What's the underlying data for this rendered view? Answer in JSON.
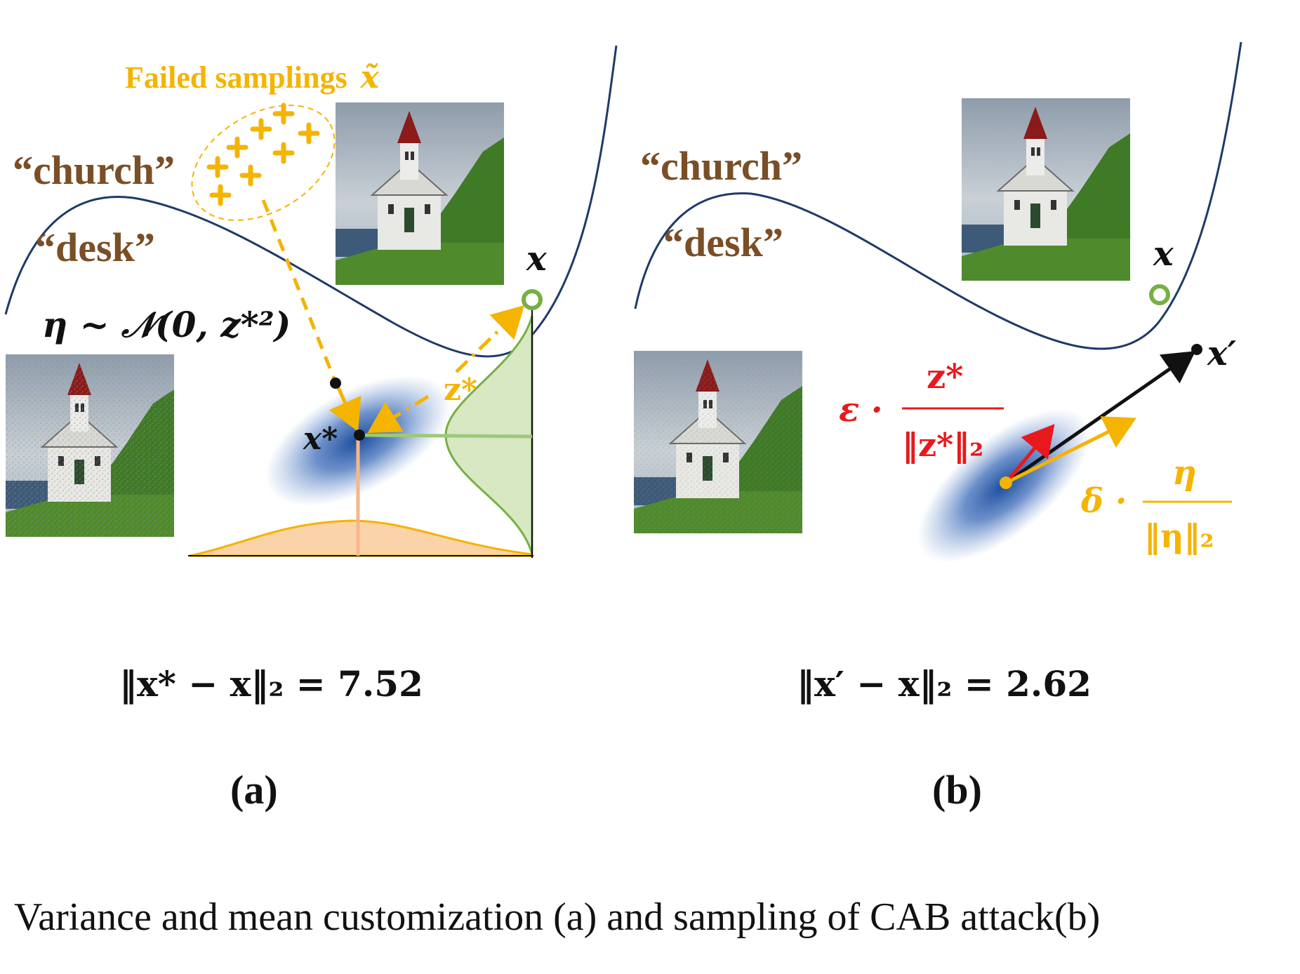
{
  "panel_a": {
    "failed_label": "Failed samplings",
    "failed_symbol": "x̃",
    "church": "“church”",
    "desk": "“desk”",
    "x_label": "x",
    "xstar_label": "x*",
    "zstar_label": "z*",
    "eta_distribution": "η ~ 𝒩(0, z*²)",
    "distance_lhs": "‖x* − x‖₂ =",
    "distance_value": "7.52",
    "label": "(a)"
  },
  "panel_b": {
    "church": "“church”",
    "desk": "“desk”",
    "x_label": "x",
    "xprime_label": "x′",
    "eps": "ε ·",
    "zstar": "z*",
    "zstar_norm": "‖z*‖₂",
    "delta": "δ ·",
    "eta": "η",
    "eta_norm": "‖η‖₂",
    "distance_lhs": "‖x′ − x‖₂ =",
    "distance_value": "2.62",
    "label": "(b)"
  },
  "caption": "Variance and mean customization (a) and sampling of CAB attack(b)",
  "colors": {
    "curve": "#1f3a68",
    "orange": "#f4b400",
    "brown": "#7a4e26",
    "green": "#76b043",
    "red": "#e8191c",
    "blue_blob": "#2a5aa8"
  }
}
